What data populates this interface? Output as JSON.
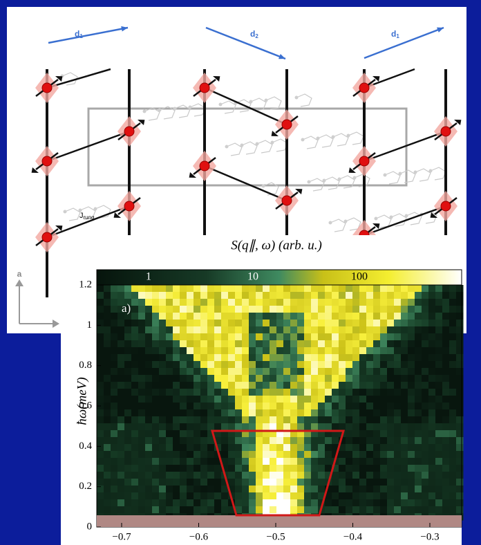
{
  "diagram": {
    "chain_labels": [
      {
        "main": "d",
        "sub": "1"
      },
      {
        "main": "d",
        "sub": "2"
      },
      {
        "main": "d",
        "sub": "1"
      }
    ],
    "rung_label": {
      "main": "J",
      "sub": "rung"
    },
    "axis_label": "a"
  },
  "plot": {
    "title": "S(q∥, ω) (arb. u.)",
    "panel_label": "a)",
    "y_label": "ħω(meV)",
    "colorbar_ticks": [
      "1",
      "10",
      "100"
    ],
    "y_ticks": [
      "0",
      "0.2",
      "0.4",
      "0.6",
      "0.8",
      "1",
      "1.2"
    ],
    "x_ticks": [
      "−0.7",
      "−0.6",
      "−0.5",
      "−0.4",
      "−0.3"
    ]
  }
}
